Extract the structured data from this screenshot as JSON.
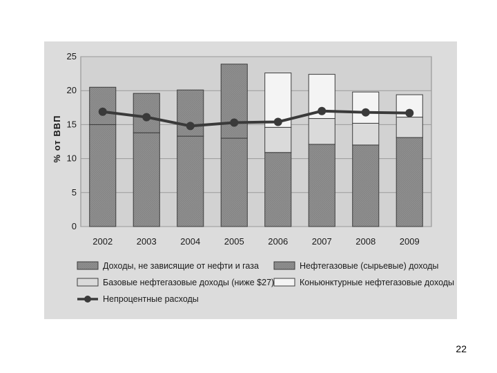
{
  "page_number": "22",
  "chart_data": {
    "type": "bar",
    "stacked": true,
    "categories": [
      "2002",
      "2003",
      "2004",
      "2005",
      "2006",
      "2007",
      "2008",
      "2009"
    ],
    "ylabel": "% от ВВП",
    "ylim": [
      0,
      25
    ],
    "yticks": [
      0,
      5,
      10,
      15,
      20,
      25
    ],
    "grid": true,
    "legend_position": "bottom",
    "series": [
      {
        "name": "Доходы, не зависящие от нефти и газа",
        "kind": "bar",
        "fill": "dark",
        "values": [
          15.0,
          13.8,
          13.3,
          13.0,
          10.9,
          12.1,
          12.0,
          13.1
        ]
      },
      {
        "name": "Нефтегазовые (сырьевые) доходы",
        "kind": "bar",
        "fill": "dark",
        "values": [
          5.5,
          5.8,
          6.8,
          10.9,
          0,
          0,
          0,
          0
        ]
      },
      {
        "name": "Базовые нефтегазовые доходы (ниже $27)",
        "kind": "bar",
        "fill": "light",
        "values": [
          0,
          0,
          0,
          0,
          3.7,
          3.8,
          3.2,
          3.0
        ]
      },
      {
        "name": "Коньюнктурные нефтегазовые доходы",
        "kind": "bar",
        "fill": "white",
        "values": [
          0,
          0,
          0,
          0,
          8.0,
          6.5,
          4.6,
          3.3
        ]
      },
      {
        "name": "Непроцентные расходы",
        "kind": "line",
        "values": [
          16.9,
          16.1,
          14.8,
          15.3,
          15.4,
          17.0,
          16.8,
          16.7
        ]
      }
    ],
    "colors": {
      "dark": "#8f8f8f",
      "light": "#dadada",
      "white": "#f4f4f4",
      "line": "#3a3a3a",
      "plot_bg": "#d2d2d2",
      "grid": "#9a9a9a"
    }
  }
}
